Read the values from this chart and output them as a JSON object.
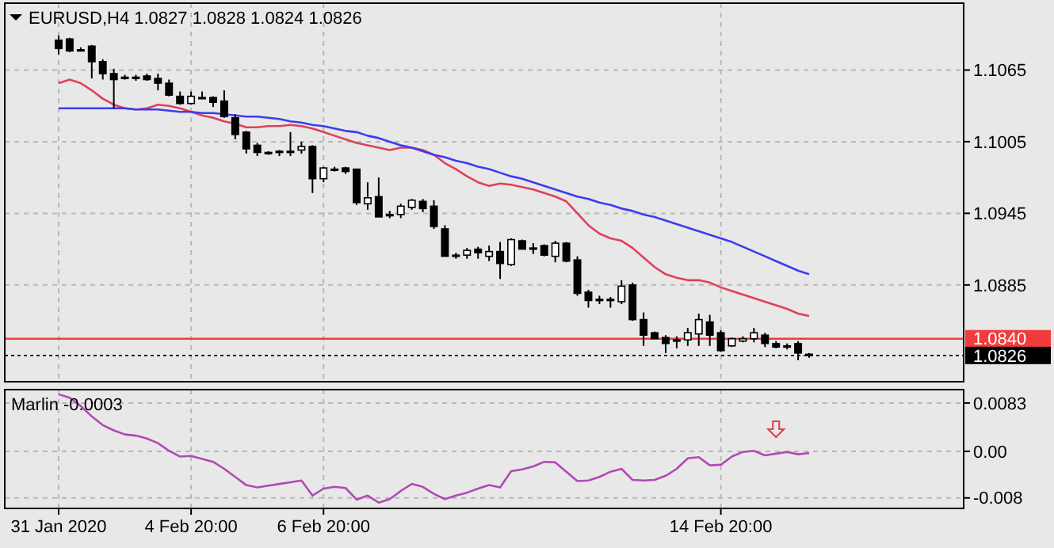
{
  "chart_data": [
    {
      "type": "candlestick",
      "title": "EURUSD,H4  1.0827 1.0828 1.0824 1.0826",
      "categories": [
        null,
        null,
        null,
        null,
        null,
        null,
        null,
        null,
        null,
        null,
        null,
        null,
        null,
        null,
        null,
        null,
        null,
        null,
        null,
        null,
        null,
        null,
        null,
        null,
        null,
        null,
        null,
        null,
        null,
        null,
        null,
        null,
        null,
        null,
        null,
        null,
        null,
        null,
        null,
        null,
        null,
        null,
        null,
        null,
        null,
        null,
        null,
        null,
        null,
        null,
        null,
        null,
        null,
        null,
        null,
        null,
        null,
        null,
        null,
        null,
        null,
        null,
        null,
        null,
        null,
        null,
        null,
        null,
        null
      ],
      "ohlc": [
        [
          1.109,
          1.1094,
          1.1078,
          1.1083
        ],
        [
          1.1091,
          1.1092,
          1.108,
          1.1081
        ],
        [
          1.1082,
          1.1084,
          1.1081,
          1.1082
        ],
        [
          1.1085,
          1.1086,
          1.1058,
          1.1072
        ],
        [
          1.1072,
          1.1074,
          1.1057,
          1.1062
        ],
        [
          1.1062,
          1.1066,
          1.1033,
          1.1057
        ],
        [
          1.1059,
          1.1061,
          1.1057,
          1.1058
        ],
        [
          1.1058,
          1.1061,
          1.1056,
          1.1059
        ],
        [
          1.106,
          1.1062,
          1.1056,
          1.1057
        ],
        [
          1.1058,
          1.1062,
          1.1048,
          1.1054
        ],
        [
          1.1054,
          1.1057,
          1.1043,
          1.1044
        ],
        [
          1.1043,
          1.1047,
          1.1036,
          1.1037
        ],
        [
          1.1037,
          1.1047,
          1.1036,
          1.1043
        ],
        [
          1.1042,
          1.1047,
          1.1041,
          1.1042
        ],
        [
          1.1042,
          1.1043,
          1.1034,
          1.1038
        ],
        [
          1.1039,
          1.1048,
          1.1025,
          1.1026
        ],
        [
          1.1025,
          1.1028,
          1.1007,
          1.1011
        ],
        [
          1.1013,
          1.1014,
          1.0995,
          1.0999
        ],
        [
          1.1002,
          1.1004,
          1.0993,
          1.0996
        ],
        [
          1.0996,
          1.0997,
          1.0994,
          1.0996
        ],
        [
          1.0997,
          1.0998,
          1.0993,
          1.0996
        ],
        [
          1.0997,
          1.1013,
          1.0993,
          1.0997
        ],
        [
          1.0998,
          1.1005,
          1.0995,
          1.1001
        ],
        [
          1.1001,
          1.1002,
          1.0962,
          1.0974
        ],
        [
          1.0974,
          1.0984,
          1.0971,
          1.0983
        ],
        [
          1.0982,
          1.0984,
          1.098,
          1.0981
        ],
        [
          1.0983,
          1.0984,
          1.0978,
          1.098
        ],
        [
          1.0982,
          1.0982,
          1.0952,
          1.0954
        ],
        [
          1.0953,
          1.0971,
          1.0948,
          1.0958
        ],
        [
          1.0959,
          1.0975,
          1.0942,
          1.0942
        ],
        [
          1.0944,
          1.0947,
          1.0941,
          1.0944
        ],
        [
          1.0944,
          1.0953,
          1.0941,
          1.0951
        ],
        [
          1.095,
          1.0957,
          1.0948,
          1.0956
        ],
        [
          1.0955,
          1.0957,
          1.0946,
          1.0949
        ],
        [
          1.0951,
          1.0956,
          1.0932,
          1.0934
        ],
        [
          1.0932,
          1.0935,
          1.0909,
          1.0909
        ],
        [
          1.091,
          1.0912,
          1.0907,
          1.091
        ],
        [
          1.091,
          1.0916,
          1.0907,
          1.0914
        ],
        [
          1.0915,
          1.0917,
          1.0907,
          1.0912
        ],
        [
          1.0909,
          1.0918,
          1.0905,
          1.0913
        ],
        [
          1.0913,
          1.0921,
          1.089,
          1.0903
        ],
        [
          1.0902,
          1.0924,
          1.0901,
          1.0923
        ],
        [
          1.0922,
          1.0923,
          1.0915,
          1.0915
        ],
        [
          1.0916,
          1.092,
          1.0911,
          1.0916
        ],
        [
          1.0918,
          1.0919,
          1.0909,
          1.091
        ],
        [
          1.0909,
          1.0922,
          1.0904,
          1.092
        ],
        [
          1.092,
          1.0921,
          1.0904,
          1.0905
        ],
        [
          1.0906,
          1.0909,
          1.0876,
          1.0878
        ],
        [
          1.0879,
          1.0881,
          1.0866,
          1.0872
        ],
        [
          1.0873,
          1.0876,
          1.0869,
          1.0873
        ],
        [
          1.0873,
          1.0875,
          1.0866,
          1.0872
        ],
        [
          1.0871,
          1.0889,
          1.0869,
          1.0884
        ],
        [
          1.0885,
          1.0887,
          1.0855,
          1.0856
        ],
        [
          1.0856,
          1.0862,
          1.0834,
          1.0843
        ],
        [
          1.0845,
          1.0846,
          1.084,
          1.084
        ],
        [
          1.0841,
          1.0843,
          1.0828,
          1.0836
        ],
        [
          1.0839,
          1.0842,
          1.0832,
          1.0839
        ],
        [
          1.0839,
          1.0849,
          1.0834,
          1.0845
        ],
        [
          1.0844,
          1.0861,
          1.0834,
          1.0856
        ],
        [
          1.0854,
          1.086,
          1.0834,
          1.0843
        ],
        [
          1.0845,
          1.0847,
          1.0829,
          1.083
        ],
        [
          1.0834,
          1.0841,
          1.0833,
          1.084
        ],
        [
          1.0838,
          1.0842,
          1.0837,
          1.084
        ],
        [
          1.084,
          1.0849,
          1.0837,
          1.0845
        ],
        [
          1.0843,
          1.0845,
          1.0833,
          1.0836
        ],
        [
          1.0836,
          1.0838,
          1.0832,
          1.0833
        ],
        [
          1.0834,
          1.0836,
          1.0831,
          1.0834
        ],
        [
          1.0836,
          1.0838,
          1.0822,
          1.0828
        ],
        [
          1.0827,
          1.0828,
          1.0824,
          1.0826
        ]
      ],
      "series": [
        {
          "type": "line",
          "color": "#e0405a",
          "values": [
            1.1054,
            1.1057,
            1.1054,
            1.1048,
            1.1041,
            1.1036,
            1.1033,
            1.1032,
            1.1033,
            1.1036,
            1.1035,
            1.1033,
            1.103,
            1.1027,
            1.1025,
            1.1022,
            1.102,
            1.1017,
            1.1017,
            1.1018,
            1.1018,
            1.1019,
            1.1018,
            1.1016,
            1.1013,
            1.101,
            1.1007,
            1.1004,
            1.1002,
            1.1,
            1.0998,
            1.1,
            1.1,
            1.0998,
            1.0994,
            1.0987,
            1.0982,
            1.0976,
            1.0971,
            1.0968,
            1.097,
            1.0969,
            1.0967,
            1.0965,
            1.0962,
            1.0959,
            1.0955,
            1.0945,
            1.0935,
            1.0928,
            1.0924,
            1.0922,
            1.0916,
            1.0908,
            1.09,
            1.0894,
            1.0891,
            1.0889,
            1.0889,
            1.0887,
            1.0883,
            1.088,
            1.0877,
            1.0874,
            1.0871,
            1.0868,
            1.0865,
            1.0861,
            1.0859
          ]
        },
        {
          "type": "line",
          "color": "#3c3cf0",
          "values": [
            1.1033,
            1.1033,
            1.1033,
            1.1033,
            1.1033,
            1.1033,
            1.1033,
            1.1032,
            1.1032,
            1.1032,
            1.1031,
            1.103,
            1.103,
            1.1029,
            1.1029,
            1.1028,
            1.1027,
            1.1026,
            1.1026,
            1.1025,
            1.1024,
            1.1022,
            1.1021,
            1.1019,
            1.1018,
            1.1016,
            1.1014,
            1.1013,
            1.101,
            1.1008,
            1.1005,
            1.1002,
            1.1,
            1.0997,
            1.0994,
            1.0992,
            1.0989,
            1.0987,
            1.0984,
            1.0982,
            1.0979,
            1.0976,
            1.0974,
            1.0971,
            1.0968,
            1.0965,
            1.0962,
            1.0959,
            1.0957,
            1.0954,
            1.0952,
            1.0949,
            1.0947,
            1.0944,
            1.0942,
            1.0939,
            1.0936,
            1.0933,
            1.093,
            1.0927,
            1.0924,
            1.0921,
            1.0917,
            1.0913,
            1.0909,
            1.0905,
            1.0901,
            1.0897,
            1.0894
          ]
        }
      ],
      "ref_lines": [
        {
          "axis": "y",
          "value": 1.084,
          "label": "1.0840",
          "color": "#f03c3c",
          "line_style": "solid"
        },
        {
          "axis": "y",
          "value": 1.0826,
          "label": "1.0826",
          "color": "#000000",
          "line_style": "dotted"
        }
      ],
      "ylim": [
        1.0804,
        1.1121
      ],
      "yticks": [
        1.0885,
        1.0945,
        1.1005,
        1.1065
      ],
      "grid": true,
      "tick_labels": "y"
    },
    {
      "type": "line",
      "title": "Marlin -0.0003",
      "categories": [
        "31 Jan 2020",
        null,
        null,
        null,
        null,
        null,
        null,
        null,
        null,
        null,
        null,
        null,
        "4 Feb 20:00",
        null,
        null,
        null,
        null,
        null,
        null,
        null,
        null,
        null,
        null,
        null,
        "6 Feb 20:00",
        null,
        null,
        null,
        null,
        null,
        null,
        null,
        null,
        null,
        null,
        null,
        null,
        null,
        null,
        null,
        null,
        null,
        null,
        null,
        null,
        null,
        null,
        null,
        null,
        null,
        null,
        null,
        null,
        null,
        null,
        null,
        null,
        null,
        null,
        null,
        "14 Feb 20:00",
        null,
        null,
        null,
        null,
        null,
        null,
        null,
        null
      ],
      "series": [
        {
          "color": "#b04ab4",
          "values": [
            0.0098,
            0.0092,
            0.0078,
            0.006,
            0.0045,
            0.0036,
            0.0029,
            0.0027,
            0.0022,
            0.0014,
            0.0001,
            -0.0009,
            -0.0008,
            -0.0013,
            -0.0018,
            -0.003,
            -0.0044,
            -0.0058,
            -0.0062,
            -0.0059,
            -0.0056,
            -0.0053,
            -0.005,
            -0.0076,
            -0.0064,
            -0.0061,
            -0.0063,
            -0.0083,
            -0.0076,
            -0.0088,
            -0.0082,
            -0.0068,
            -0.0056,
            -0.0061,
            -0.0073,
            -0.0082,
            -0.0076,
            -0.0071,
            -0.0064,
            -0.0058,
            -0.0062,
            -0.0034,
            -0.0031,
            -0.0026,
            -0.0018,
            -0.0019,
            -0.0035,
            -0.0051,
            -0.005,
            -0.0044,
            -0.0035,
            -0.003,
            -0.0049,
            -0.005,
            -0.0049,
            -0.0042,
            -0.003,
            -0.0012,
            -0.001,
            -0.0024,
            -0.0023,
            -0.0009,
            -0.0001,
            0.0001,
            -0.0007,
            -0.0004,
            -0.0001,
            -0.0005,
            -0.0003
          ]
        }
      ],
      "ylim": [
        -0.0098,
        0.0106
      ],
      "yticks": [
        -0.008,
        {
          "value": 0,
          "label": "0.00"
        },
        0.0083
      ],
      "grid": true
    }
  ]
}
